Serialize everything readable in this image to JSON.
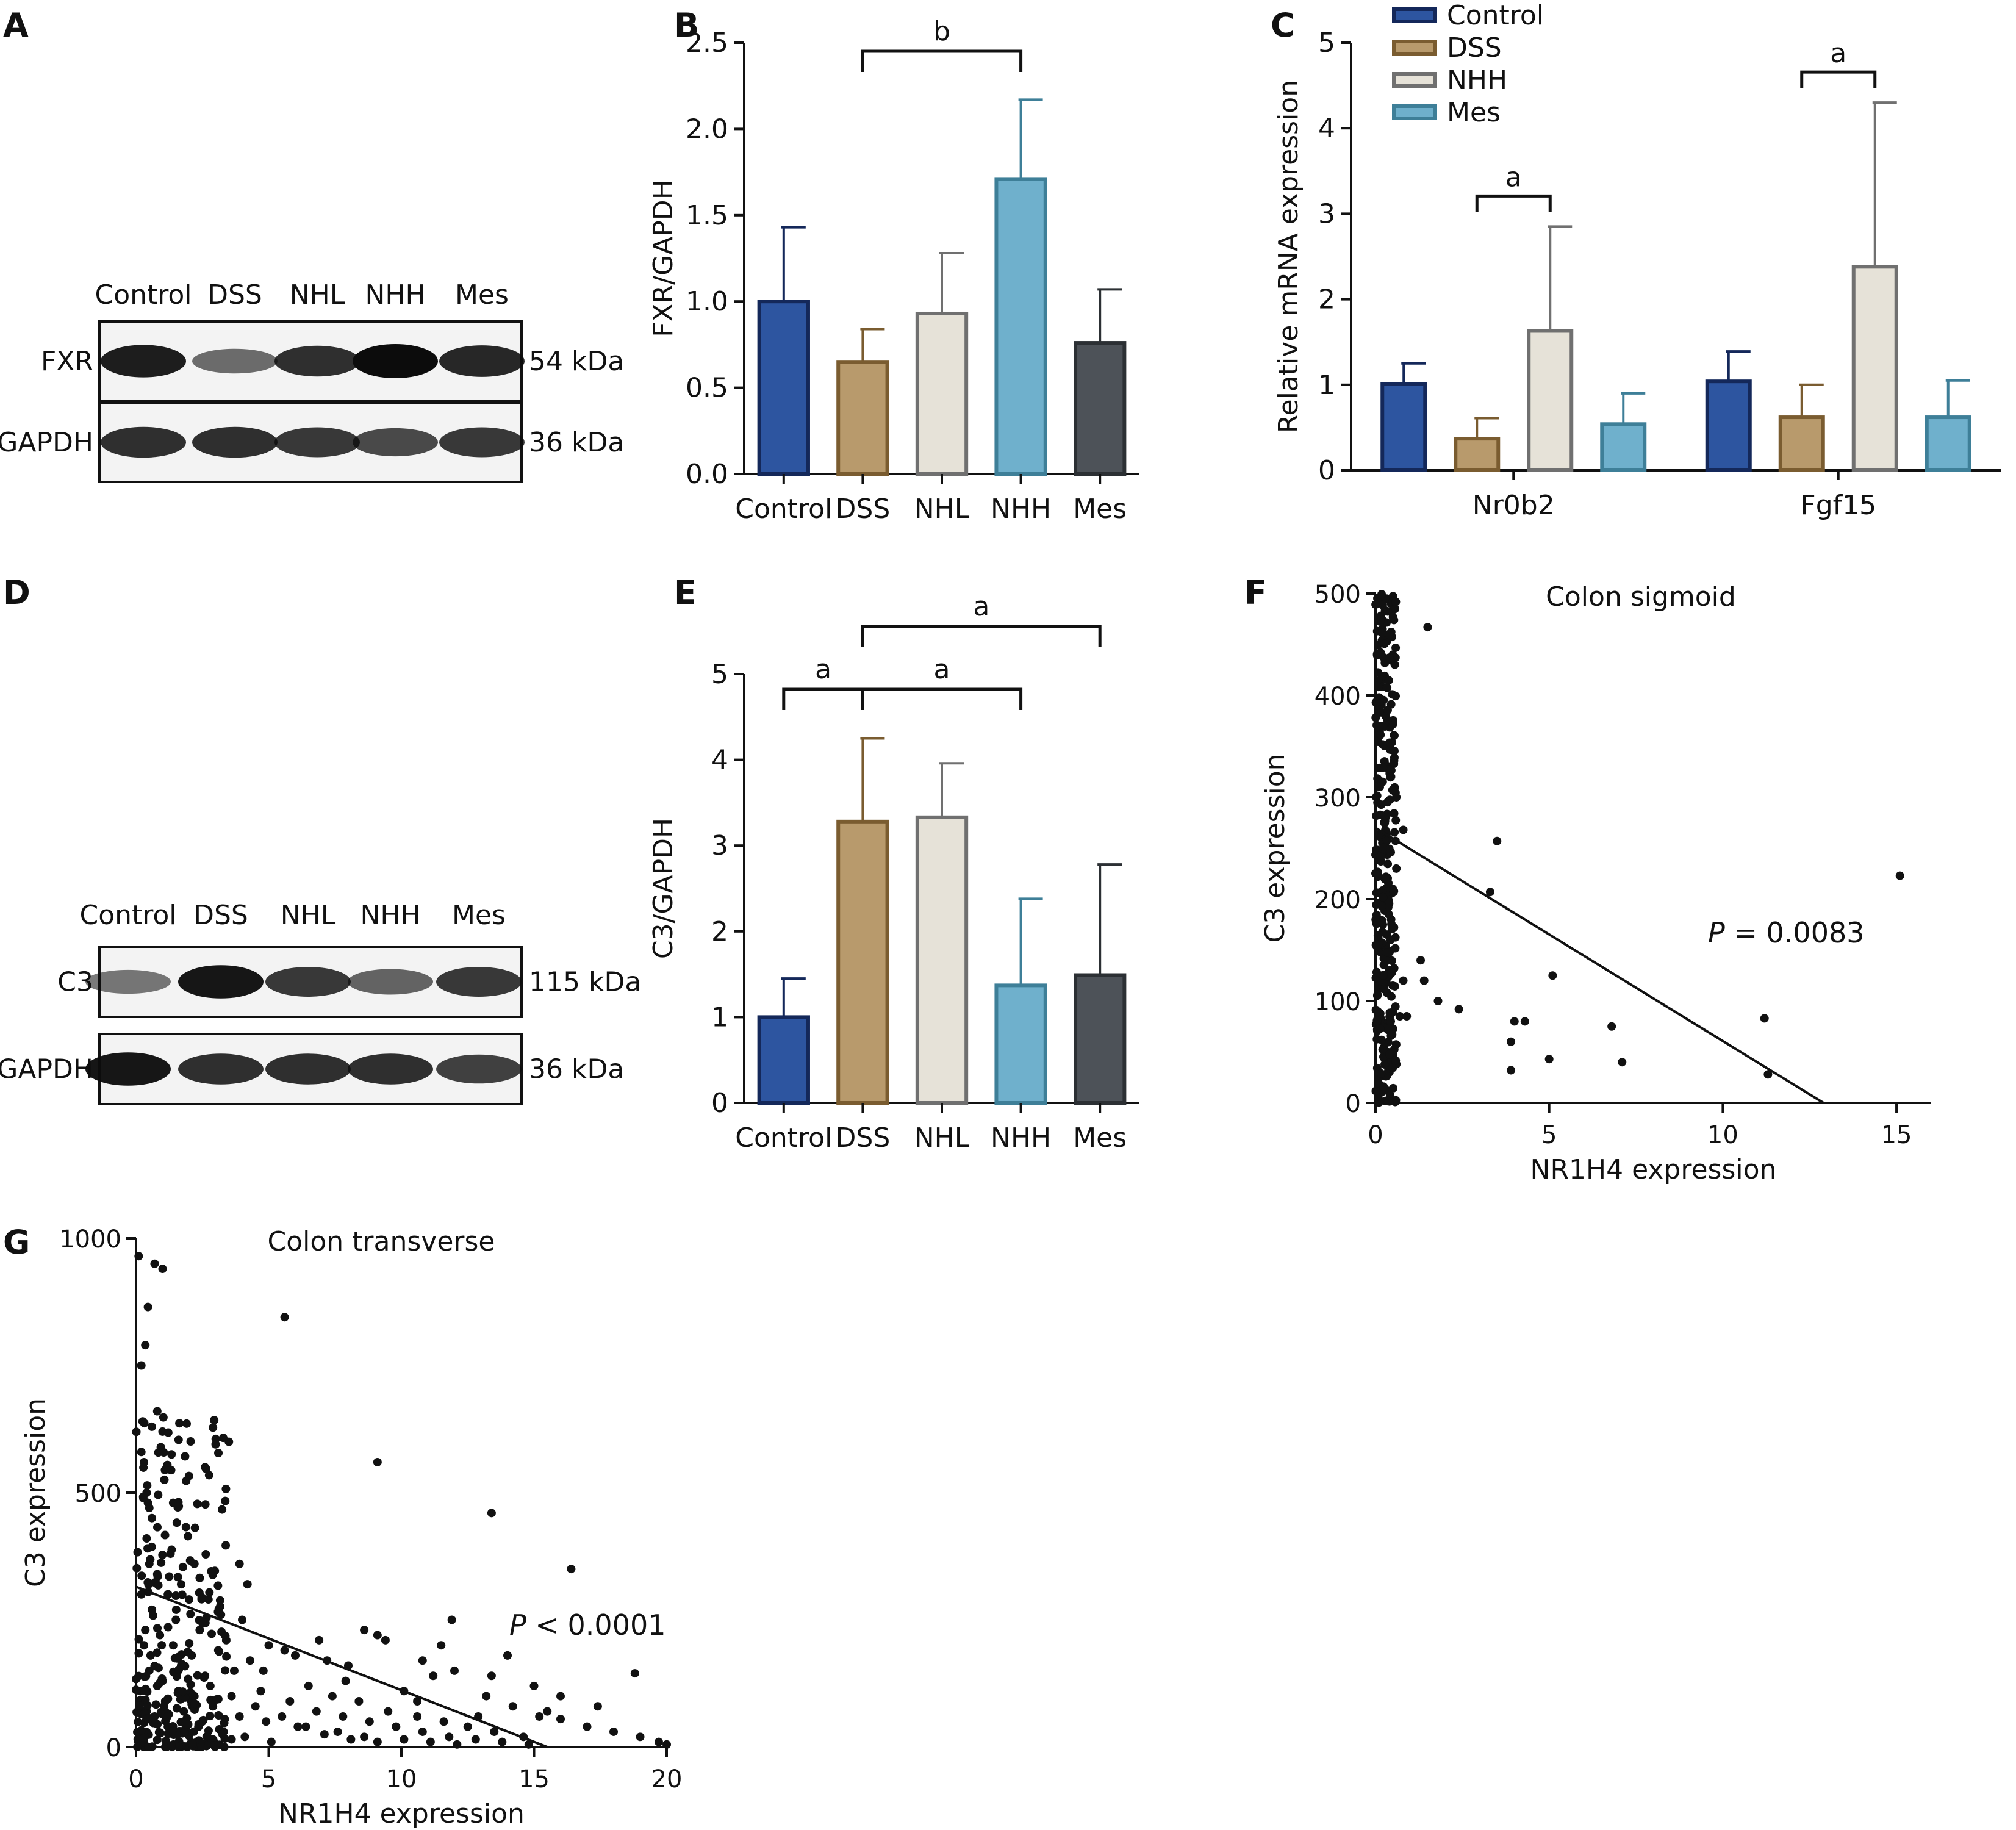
{
  "colors": {
    "control": "#2d55a0",
    "dss": "#b89a6c",
    "nhl": "#e6e2d8",
    "nhh": "#6fb0cc",
    "mes": "#4d5258",
    "control_stroke": "#14285a",
    "dss_stroke": "#7a5c30",
    "nhl_stroke": "#707070",
    "nhh_stroke": "#3e7f98",
    "mes_stroke": "#2c3034",
    "axis": "#111111"
  },
  "panels": {
    "a": {
      "letter": "A",
      "lanes": [
        "Control",
        "DSS",
        "NHL",
        "NHH",
        "Mes"
      ],
      "rows": [
        {
          "label": "FXR",
          "kda": "54 kDa",
          "intensity": [
            0.9,
            0.45,
            0.8,
            1.0,
            0.85
          ]
        },
        {
          "label": "GAPDH",
          "kda": "36 kDa",
          "intensity": [
            0.8,
            0.8,
            0.75,
            0.65,
            0.75
          ]
        }
      ]
    },
    "d": {
      "letter": "D",
      "lanes": [
        "Control",
        "DSS",
        "NHL",
        "NHH",
        "Mes"
      ],
      "rows": [
        {
          "label": "C3",
          "kda": "115 kDa",
          "intensity": [
            0.4,
            0.95,
            0.75,
            0.5,
            0.75
          ]
        },
        {
          "label": "GAPDH",
          "kda": "36 kDa",
          "intensity": [
            0.95,
            0.8,
            0.8,
            0.8,
            0.7
          ]
        }
      ]
    },
    "b": {
      "letter": "B"
    },
    "c": {
      "letter": "C"
    },
    "e": {
      "letter": "E"
    },
    "f": {
      "letter": "F"
    },
    "g": {
      "letter": "G"
    }
  },
  "chart_data": [
    {
      "id": "b",
      "type": "bar",
      "categories": [
        "Control",
        "DSS",
        "NHL",
        "NHH",
        "Mes"
      ],
      "values": [
        1.0,
        0.65,
        0.93,
        1.71,
        0.76
      ],
      "errors": [
        0.43,
        0.19,
        0.35,
        0.46,
        0.31
      ],
      "ylabel": "FXR/GAPDH",
      "ylim": [
        0,
        2.5
      ],
      "yticks": [
        "0.0",
        "0.5",
        "1.0",
        "1.5",
        "2.0",
        "2.5"
      ],
      "brackets": [
        {
          "from": 1,
          "to": 3,
          "label": "b"
        }
      ]
    },
    {
      "id": "c",
      "type": "bar",
      "categories": [
        "Nr0b2",
        "Fgf15"
      ],
      "series": [
        {
          "name": "Control",
          "values": [
            1.01,
            1.04
          ],
          "errors": [
            0.24,
            0.35
          ]
        },
        {
          "name": "DSS",
          "values": [
            0.37,
            0.62
          ],
          "errors": [
            0.24,
            0.38
          ]
        },
        {
          "name": "NHH",
          "values": [
            1.63,
            2.38
          ],
          "errors": [
            1.22,
            1.92
          ]
        },
        {
          "name": "Mes",
          "values": [
            0.54,
            0.62
          ],
          "errors": [
            0.36,
            0.43
          ]
        }
      ],
      "ylabel": "Relative mRNA expression",
      "ylim": [
        0,
        5
      ],
      "yticks": [
        "0",
        "1",
        "2",
        "3",
        "4",
        "5"
      ],
      "legend": "top-left",
      "brackets": [
        {
          "group": 0,
          "from": 1,
          "to": 2,
          "label": "a"
        },
        {
          "group": 1,
          "from": 1,
          "to": 2,
          "label": "a"
        }
      ]
    },
    {
      "id": "e",
      "type": "bar",
      "categories": [
        "Control",
        "DSS",
        "NHL",
        "NHH",
        "Mes"
      ],
      "values": [
        1.0,
        3.28,
        3.33,
        1.37,
        1.49
      ],
      "errors": [
        0.45,
        0.97,
        0.63,
        1.01,
        1.29
      ],
      "ylabel": "C3/GAPDH",
      "ylim": [
        0,
        5
      ],
      "yticks": [
        "0",
        "1",
        "2",
        "3",
        "4",
        "5"
      ],
      "brackets": [
        {
          "from": 0,
          "to": 1,
          "label": "a",
          "level": 0
        },
        {
          "from": 1,
          "to": 3,
          "label": "a",
          "level": 0
        },
        {
          "from": 1,
          "to": 4,
          "label": "a",
          "level": 1
        }
      ]
    },
    {
      "id": "f",
      "type": "scatter",
      "title": "Colon sigmoid",
      "xlabel": "NR1H4 expression",
      "ylabel": "C3 expression",
      "xlim": [
        0,
        16
      ],
      "ylim": [
        0,
        500
      ],
      "xticks": [
        "0",
        "5",
        "10",
        "15"
      ],
      "yticks": [
        "0",
        "100",
        "200",
        "300",
        "400",
        "500"
      ],
      "annotation": {
        "p": "P",
        "text": " = 0.0083"
      },
      "fit": {
        "x0": 0,
        "y0": 270,
        "x1": 12.9,
        "y1": 0
      },
      "points": [
        [
          0.45,
          490
        ],
        [
          1.5,
          467
        ],
        [
          0.5,
          440
        ],
        [
          0.6,
          300
        ],
        [
          3.5,
          257
        ],
        [
          3.3,
          207
        ],
        [
          0.8,
          268
        ],
        [
          0.6,
          230
        ],
        [
          1.3,
          140
        ],
        [
          1.4,
          120
        ],
        [
          1.8,
          100
        ],
        [
          2.4,
          92
        ],
        [
          0.8,
          120
        ],
        [
          0.5,
          115
        ],
        [
          0.7,
          85
        ],
        [
          0.9,
          85
        ],
        [
          4.0,
          80
        ],
        [
          4.3,
          80
        ],
        [
          3.9,
          60
        ],
        [
          5.1,
          125
        ],
        [
          5.0,
          43
        ],
        [
          6.8,
          75
        ],
        [
          7.1,
          40
        ],
        [
          11.2,
          83
        ],
        [
          11.3,
          28
        ],
        [
          15.1,
          223
        ],
        [
          0.4,
          30
        ],
        [
          0.5,
          40
        ],
        [
          0.6,
          38
        ],
        [
          3.9,
          32
        ],
        [
          0.35,
          150
        ],
        [
          0.4,
          130
        ],
        [
          0.45,
          180
        ],
        [
          0.5,
          210
        ]
      ]
    },
    {
      "id": "g",
      "type": "scatter",
      "title": "Colon transverse",
      "xlabel": "NR1H4 expression",
      "ylabel": "C3 expression",
      "xlim": [
        0,
        20
      ],
      "ylim": [
        0,
        1000
      ],
      "xticks": [
        "0",
        "5",
        "10",
        "15",
        "20"
      ],
      "yticks": [
        "0",
        "500",
        "1000"
      ],
      "annotation": {
        "p": "P",
        "text": " < 0.0001"
      },
      "fit": {
        "x0": 0,
        "y0": 315,
        "x1": 15.5,
        "y1": 0
      },
      "points": [
        [
          0.1,
          965
        ],
        [
          0.7,
          950
        ],
        [
          1.0,
          940
        ],
        [
          0.45,
          865
        ],
        [
          0.35,
          790
        ],
        [
          5.6,
          845
        ],
        [
          0.2,
          750
        ],
        [
          0.25,
          640
        ],
        [
          0.8,
          660
        ],
        [
          1.0,
          620
        ],
        [
          3.5,
          600
        ],
        [
          3.0,
          595
        ],
        [
          2.6,
          550
        ],
        [
          9.1,
          560
        ],
        [
          0.2,
          580
        ],
        [
          0.3,
          560
        ],
        [
          0.4,
          500
        ],
        [
          0.45,
          480
        ],
        [
          0.5,
          470
        ],
        [
          0.6,
          450
        ],
        [
          1.3,
          380
        ],
        [
          3.9,
          360
        ],
        [
          4.2,
          320
        ],
        [
          13.4,
          460
        ],
        [
          16.4,
          350
        ],
        [
          0.4,
          410
        ],
        [
          0.5,
          360
        ],
        [
          0.8,
          340
        ],
        [
          1.2,
          300
        ],
        [
          2.0,
          290
        ],
        [
          3.2,
          260
        ],
        [
          4.0,
          250
        ],
        [
          5.0,
          200
        ],
        [
          6.0,
          180
        ],
        [
          7.2,
          170
        ],
        [
          8.0,
          160
        ],
        [
          9.1,
          220
        ],
        [
          9.4,
          210
        ],
        [
          10.8,
          170
        ],
        [
          11.2,
          140
        ],
        [
          11.5,
          200
        ],
        [
          12.0,
          150
        ],
        [
          13.4,
          140
        ],
        [
          13.2,
          100
        ],
        [
          14.0,
          180
        ],
        [
          15.0,
          120
        ],
        [
          16.0,
          100
        ],
        [
          18.8,
          145
        ],
        [
          14.2,
          80
        ],
        [
          15.2,
          60
        ],
        [
          16.0,
          55
        ],
        [
          17.0,
          40
        ],
        [
          18.0,
          30
        ],
        [
          19.0,
          20
        ],
        [
          19.7,
          10
        ],
        [
          20.0,
          5
        ],
        [
          1.5,
          250
        ],
        [
          2.4,
          230
        ],
        [
          3.4,
          210
        ],
        [
          4.8,
          150
        ],
        [
          6.5,
          120
        ],
        [
          7.4,
          100
        ],
        [
          8.4,
          90
        ],
        [
          9.5,
          70
        ],
        [
          10.6,
          60
        ],
        [
          11.6,
          50
        ],
        [
          12.5,
          40
        ],
        [
          13.5,
          30
        ],
        [
          14.6,
          20
        ],
        [
          0.6,
          270
        ],
        [
          0.9,
          220
        ],
        [
          1.7,
          160
        ],
        [
          2.6,
          140
        ],
        [
          3.6,
          100
        ],
        [
          4.5,
          80
        ],
        [
          5.5,
          60
        ],
        [
          6.4,
          40
        ],
        [
          7.6,
          30
        ],
        [
          8.6,
          20
        ],
        [
          10.1,
          15
        ],
        [
          11.1,
          10
        ],
        [
          12.1,
          5
        ],
        [
          0.3,
          200
        ],
        [
          0.5,
          150
        ],
        [
          0.8,
          120
        ],
        [
          1.1,
          90
        ],
        [
          1.8,
          70
        ],
        [
          2.5,
          50
        ],
        [
          3.3,
          30
        ],
        [
          4.1,
          20
        ],
        [
          5.1,
          10
        ],
        [
          0.2,
          300
        ],
        [
          0.35,
          230
        ],
        [
          0.55,
          180
        ],
        [
          1.4,
          200
        ],
        [
          2.1,
          180
        ],
        [
          2.8,
          120
        ],
        [
          3.7,
          150
        ],
        [
          4.7,
          110
        ],
        [
          5.8,
          90
        ],
        [
          6.8,
          70
        ],
        [
          7.8,
          60
        ],
        [
          8.8,
          50
        ],
        [
          9.8,
          40
        ],
        [
          10.8,
          30
        ],
        [
          11.8,
          20
        ],
        [
          12.8,
          15
        ],
        [
          13.8,
          10
        ],
        [
          14.8,
          5
        ],
        [
          1.0,
          130
        ],
        [
          1.6,
          110
        ],
        [
          2.2,
          100
        ],
        [
          2.9,
          80
        ],
        [
          3.9,
          60
        ],
        [
          4.9,
          50
        ],
        [
          6.1,
          40
        ],
        [
          7.1,
          25
        ],
        [
          8.1,
          15
        ],
        [
          9.1,
          10
        ],
        [
          0.15,
          110
        ],
        [
          0.25,
          90
        ],
        [
          0.4,
          70
        ],
        [
          0.7,
          60
        ],
        [
          1.2,
          40
        ],
        [
          1.9,
          30
        ],
        [
          2.7,
          20
        ],
        [
          3.6,
          15
        ],
        [
          6.9,
          210
        ],
        [
          7.9,
          130
        ],
        [
          10.1,
          110
        ],
        [
          10.6,
          90
        ],
        [
          12.9,
          60
        ],
        [
          15.5,
          70
        ],
        [
          17.4,
          80
        ],
        [
          11.9,
          250
        ],
        [
          8.6,
          230
        ],
        [
          5.6,
          190
        ],
        [
          4.3,
          170
        ],
        [
          3.1,
          190
        ],
        [
          2.2,
          360
        ],
        [
          1.7,
          320
        ],
        [
          1.4,
          480
        ]
      ]
    }
  ]
}
